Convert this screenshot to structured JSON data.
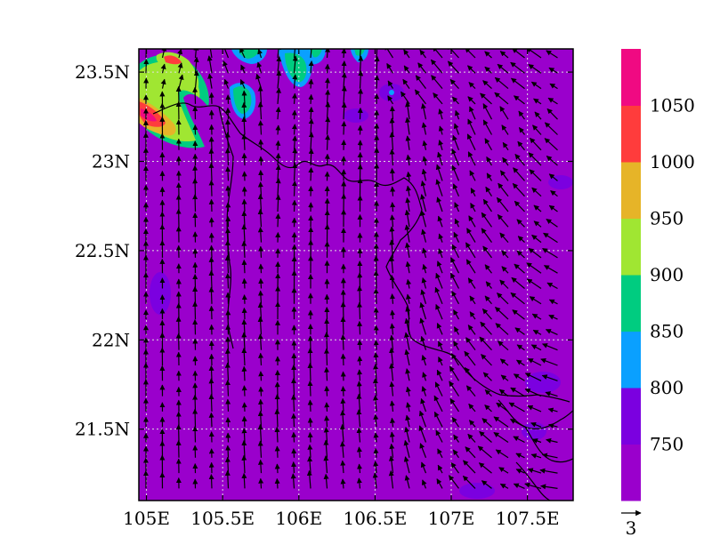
{
  "map": {
    "lon_ticks": [
      "105E",
      "105.5E",
      "106E",
      "106.5E",
      "107E",
      "107.5E"
    ],
    "lon_values": [
      105,
      105.5,
      106,
      106.5,
      107,
      107.5
    ],
    "lat_ticks": [
      "23.5N",
      "23N",
      "22.5N",
      "22N",
      "21.5N"
    ],
    "lat_values": [
      23.5,
      23,
      22.5,
      22,
      21.5
    ],
    "lon_range": [
      104.95,
      107.8
    ],
    "lat_range": [
      21.1,
      23.63
    ],
    "grid": true,
    "fill_color": "#9a00cc",
    "vector_reference": "3"
  },
  "colorbar": {
    "levels": [
      "750",
      "800",
      "850",
      "900",
      "950",
      "1000",
      "1050"
    ],
    "colors": [
      "#9a00cc",
      "#7b00e0",
      "#0aa0ff",
      "#00cc80",
      "#a0e632",
      "#e6b428",
      "#ff3c3c",
      "#f00a82"
    ]
  }
}
